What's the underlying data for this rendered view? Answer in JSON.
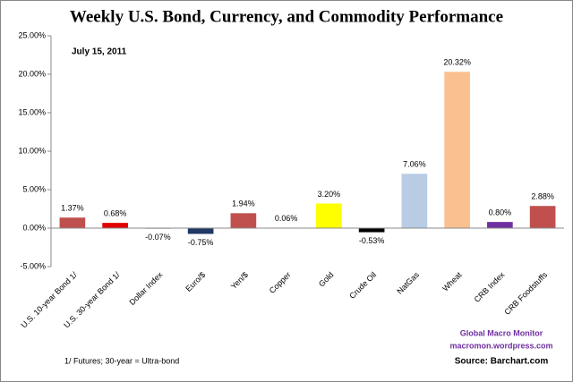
{
  "chart_data": {
    "type": "bar",
    "title": "Weekly U.S. Bond, Currency, and Commodity Performance",
    "subtitle": "July 15, 2011",
    "categories": [
      "U.S. 10-year Bond 1/",
      "U.S. 30-year Bond 1/",
      "Dollar Index",
      "Euro/$",
      "Yen/$",
      "Copper",
      "Gold",
      "Crude Oil",
      "NatGas",
      "Wheat",
      "CRB Index",
      "CRB Foodstuffs"
    ],
    "values": [
      1.37,
      0.68,
      -0.07,
      -0.75,
      1.94,
      0.06,
      3.2,
      -0.53,
      7.06,
      20.32,
      0.8,
      2.88
    ],
    "value_labels": [
      "1.37%",
      "0.68%",
      "-0.07%",
      "-0.75%",
      "1.94%",
      "0.06%",
      "3.20%",
      "-0.53%",
      "7.06%",
      "20.32%",
      "0.80%",
      "2.88%"
    ],
    "colors": [
      "#c0504d",
      "#e00000",
      "#1f3864",
      "#1f3864",
      "#c0504d",
      "#e46c0a",
      "#ffff00",
      "#000000",
      "#b8cce4",
      "#fac090",
      "#7030a0",
      "#c0504d"
    ],
    "ylim": [
      -5,
      25
    ],
    "yticks": [
      {
        "value": -5,
        "label": "-5.00%"
      },
      {
        "value": 0,
        "label": "0.00%"
      },
      {
        "value": 5,
        "label": "5.00%"
      },
      {
        "value": 10,
        "label": "10.00%"
      },
      {
        "value": 15,
        "label": "15.00%"
      },
      {
        "value": 20,
        "label": "20.00%"
      },
      {
        "value": 25,
        "label": "25.00%"
      }
    ],
    "grid": false,
    "annotations": {
      "footnote": "1/ Futures; 30-year = Ultra-bond",
      "brand": "Global Macro Monitor",
      "site": "macromon.wordpress.com",
      "source": "Source: Barchart.com"
    }
  }
}
